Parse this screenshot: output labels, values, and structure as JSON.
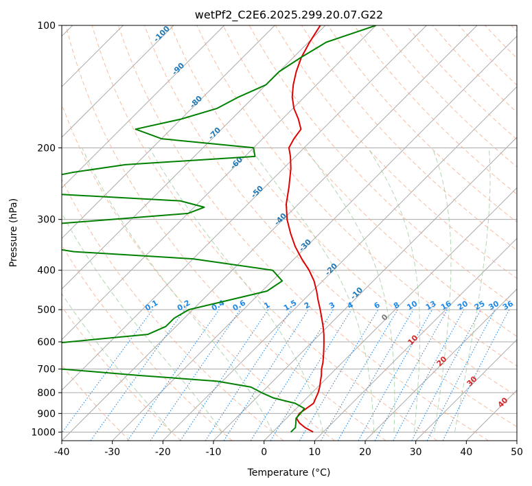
{
  "chart_data": {
    "type": "line",
    "title": "wetPf2_C2E6.2025.299.20.07.G22",
    "xlabel": "Temperature (°C)",
    "ylabel": "Pressure (hPa)",
    "xlim": [
      -40,
      50
    ],
    "ylim": [
      1050,
      100
    ],
    "y_scale": "log",
    "x_ticks": [
      -40,
      -30,
      -20,
      -10,
      0,
      10,
      20,
      30,
      40,
      50
    ],
    "y_ticks": [
      100,
      200,
      300,
      400,
      500,
      600,
      700,
      800,
      900,
      1000
    ],
    "grid": "horizontal pressure lines and skewed isotherms",
    "colors": {
      "temperature": "#e00000",
      "dewpoint": "#008000",
      "isotherm": "#aaaaaa",
      "dry_adiabat": "#f4a582",
      "moist_adiabat": "#92c592",
      "mixing_ratio": "#1e88e5",
      "isotherm_label": "#1f77b4",
      "lifted_index_label": "#d62728"
    },
    "isotherm_labels": [
      "-100",
      "-90",
      "-80",
      "-70",
      "-60",
      "-50",
      "-40",
      "-30",
      "-20",
      "-10"
    ],
    "mixing_ratio_labels": [
      "0.1",
      "0.2",
      "0.4",
      "0.6",
      "1",
      "1.5",
      "2",
      "3",
      "4",
      "6",
      "8",
      "10",
      "13",
      "16",
      "20",
      "25",
      "30",
      "36"
    ],
    "secondary_labels": [
      "0",
      "10",
      "20",
      "30",
      "40"
    ],
    "series": [
      {
        "key": "temperature",
        "pressure": [
          1000,
          975,
          950,
          925,
          900,
          875,
          850,
          825,
          800,
          775,
          750,
          725,
          700,
          675,
          650,
          625,
          600,
          575,
          550,
          525,
          500,
          475,
          450,
          425,
          400,
          375,
          350,
          325,
          300,
          275,
          250,
          225,
          210,
          200,
          190,
          180,
          170,
          160,
          150,
          140,
          130,
          120,
          110,
          100
        ],
        "values": [
          8.0,
          5.5,
          3.5,
          2.0,
          1.6,
          2.0,
          2.4,
          1.8,
          1.2,
          0.4,
          -0.6,
          -1.6,
          -2.8,
          -3.8,
          -5.0,
          -6.3,
          -7.7,
          -9.2,
          -10.9,
          -12.8,
          -14.8,
          -17.0,
          -19.2,
          -21.7,
          -24.8,
          -28.5,
          -32.2,
          -35.7,
          -39.2,
          -42.4,
          -45.2,
          -48.5,
          -51.0,
          -53.0,
          -53.8,
          -54.3,
          -56.8,
          -59.8,
          -62.4,
          -64.6,
          -66.6,
          -68.4,
          -69.8,
          -71.0
        ]
      },
      {
        "key": "dewpoint",
        "pressure": [
          1000,
          975,
          950,
          925,
          900,
          875,
          850,
          825,
          800,
          775,
          750,
          725,
          700,
          675,
          650,
          625,
          600,
          575,
          550,
          525,
          500,
          475,
          450,
          425,
          400,
          375,
          360,
          340,
          320,
          300,
          290,
          280,
          270,
          260,
          250,
          240,
          230,
          220,
          210,
          200,
          190,
          180,
          170,
          160,
          150,
          140,
          130,
          120,
          110,
          100
        ],
        "values": [
          3.6,
          3.6,
          2.8,
          1.9,
          1.8,
          1.6,
          -1.2,
          -6.5,
          -10.0,
          -13.2,
          -21.0,
          -38.0,
          -54.0,
          -70.0,
          -75.0,
          -71.0,
          -58.0,
          -44.0,
          -42.0,
          -42.0,
          -40.8,
          -35.0,
          -29.0,
          -28.0,
          -32.0,
          -50.0,
          -75.0,
          -90.0,
          -100.0,
          -74.0,
          -60.0,
          -58.0,
          -64.0,
          -90.0,
          -100.0,
          -97.0,
          -91.0,
          -82.0,
          -58.0,
          -60.0,
          -80.0,
          -87.0,
          -80.0,
          -75.0,
          -73.0,
          -70.0,
          -70.0,
          -68.5,
          -66.5,
          -60.0
        ]
      }
    ]
  }
}
